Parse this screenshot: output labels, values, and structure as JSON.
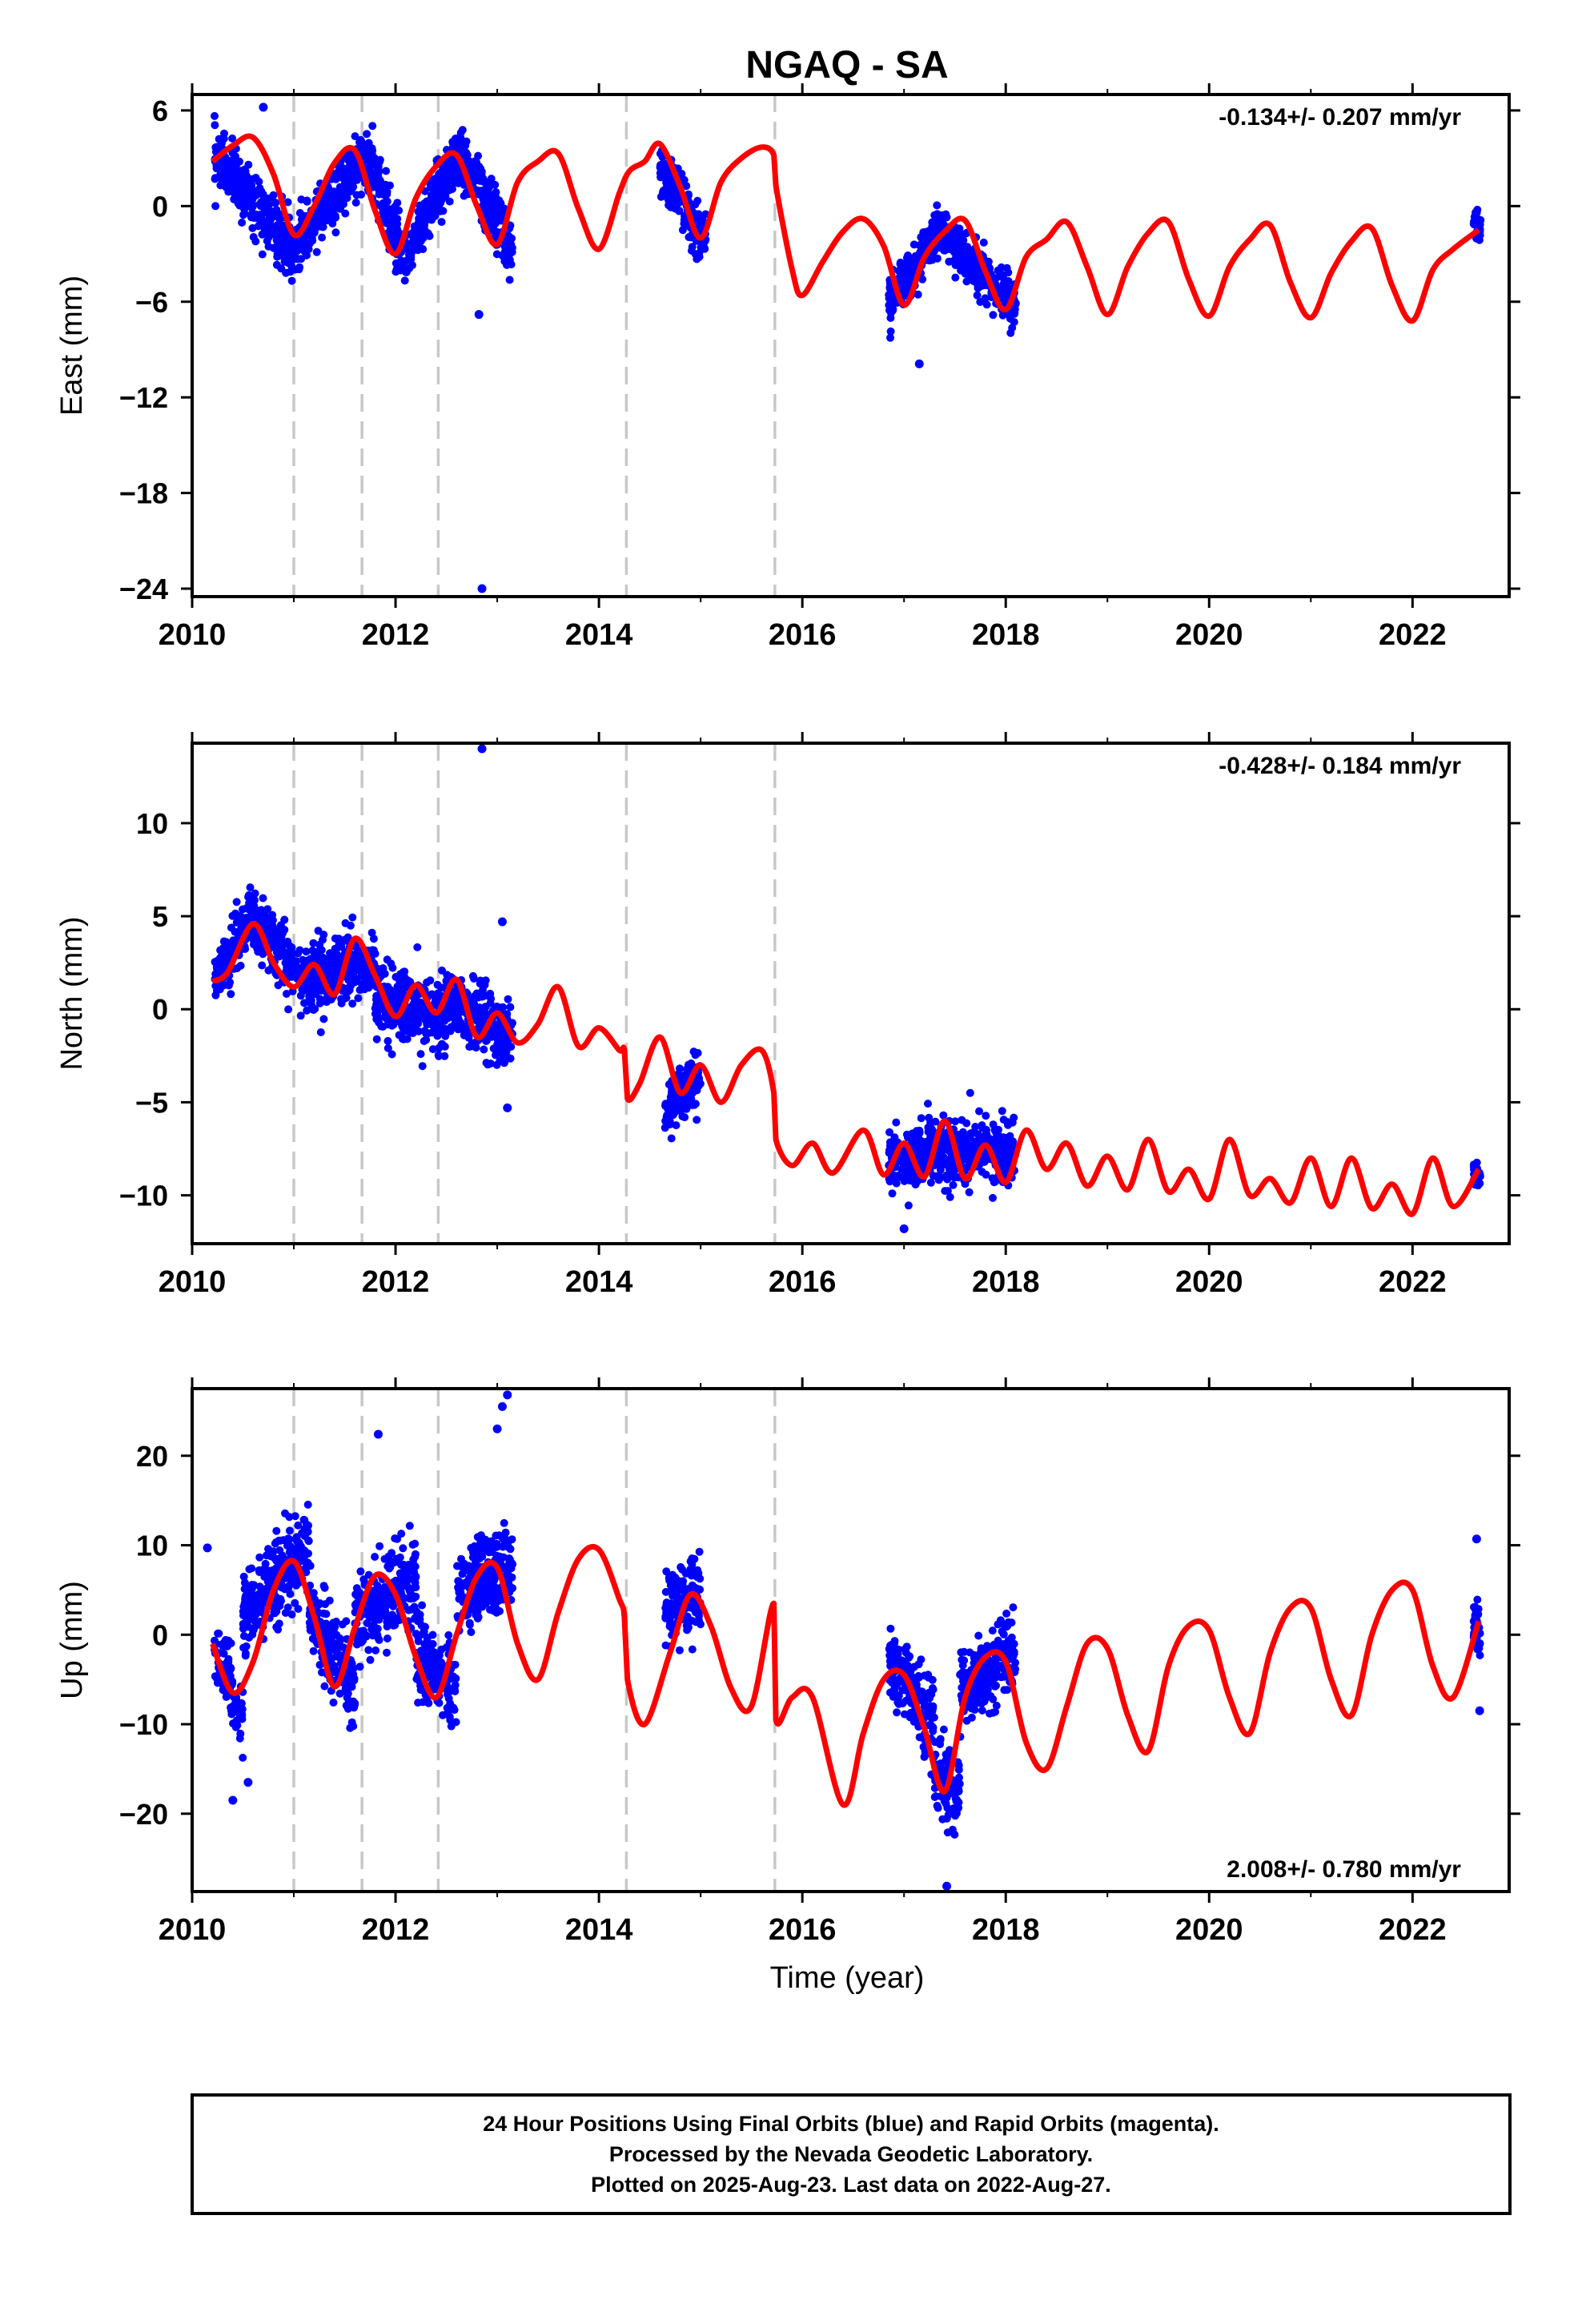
{
  "title": "NGAQ - SA",
  "xlabel": "Time (year)",
  "caption": {
    "line1": "24 Hour Positions Using Final Orbits (blue) and Rapid Orbits (magenta).",
    "line2": "Processed by the Nevada Geodetic Laboratory.",
    "line3": "Plotted on 2025-Aug-23. Last data on 2022-Aug-27."
  },
  "colors": {
    "data_points": "#0000ff",
    "model_fit": "#ff0000",
    "event_lines": "#c8c8c8",
    "frame": "#000000"
  },
  "equipment_change_years": [
    2011.0,
    2011.67,
    2012.42,
    2014.27,
    2015.73
  ],
  "chart_data": [
    {
      "type": "scatter",
      "ylabel": "East (mm)",
      "rate_label": "-0.134+/- 0.207 mm/yr",
      "xlim": [
        2010.0,
        2022.95
      ],
      "ylim": [
        -24.5,
        7.0
      ],
      "xticks": [
        2010,
        2012,
        2014,
        2016,
        2018,
        2020,
        2022
      ],
      "yticks": [
        6,
        0,
        -6,
        -12,
        -18,
        -24
      ],
      "fit": {
        "name": "model",
        "x": [
          2010.2,
          2010.4,
          2010.6,
          2010.8,
          2011.0,
          2011.2,
          2011.4,
          2011.6,
          2011.8,
          2012.0,
          2012.2,
          2012.4,
          2012.6,
          2012.8,
          2013.0,
          2013.2,
          2013.4,
          2013.6,
          2013.8,
          2014.0,
          2014.2,
          2014.3,
          2014.45,
          2014.6,
          2014.8,
          2015.0,
          2015.2,
          2015.4,
          2015.6,
          2015.72,
          2015.74,
          2015.9,
          2016.0,
          2016.2,
          2016.4,
          2016.6,
          2016.8,
          2017.0,
          2017.2,
          2017.4,
          2017.6,
          2017.8,
          2018.0,
          2018.2,
          2018.4,
          2018.6,
          2018.8,
          2019.0,
          2019.2,
          2019.4,
          2019.6,
          2019.8,
          2020.0,
          2020.2,
          2020.4,
          2020.6,
          2020.8,
          2021.0,
          2021.2,
          2021.4,
          2021.6,
          2021.8,
          2022.0,
          2022.2,
          2022.4,
          2022.65
        ],
        "y": [
          2.8,
          3.8,
          4.3,
          2.0,
          -1.8,
          0.0,
          2.7,
          3.5,
          -0.3,
          -3.0,
          0.5,
          2.5,
          3.2,
          0.0,
          -2.4,
          1.5,
          2.8,
          3.3,
          -0.2,
          -2.7,
          0.8,
          2.2,
          2.8,
          3.9,
          1.2,
          -2.0,
          1.5,
          3.0,
          3.7,
          3.2,
          1.3,
          -4.0,
          -5.6,
          -3.5,
          -1.6,
          -0.8,
          -2.5,
          -6.2,
          -3.2,
          -1.6,
          -0.9,
          -4.1,
          -6.5,
          -3.2,
          -2.1,
          -1.0,
          -3.8,
          -6.8,
          -3.8,
          -1.7,
          -1.0,
          -4.6,
          -6.9,
          -3.8,
          -2.1,
          -1.2,
          -4.8,
          -7.0,
          -4.2,
          -2.2,
          -1.4,
          -5.0,
          -7.2,
          -4.0,
          -2.7,
          -1.5
        ]
      },
      "points": {
        "name": "positions",
        "segments": [
          {
            "x": [
              2010.22,
              2011.0
            ],
            "center": [
              3.2,
              -2.8
            ],
            "spread": 1.5
          },
          {
            "x": [
              2011.0,
              2011.7
            ],
            "center": [
              -2.8,
              3.2
            ],
            "spread": 1.4
          },
          {
            "x": [
              2011.7,
              2012.1
            ],
            "center": [
              3.2,
              -3.4
            ],
            "spread": 1.6
          },
          {
            "x": [
              2012.1,
              2012.6
            ],
            "center": [
              -3.4,
              3.4
            ],
            "spread": 1.4
          },
          {
            "x": [
              2012.6,
              2013.15
            ],
            "center": [
              3.4,
              -2.8
            ],
            "spread": 1.6
          },
          {
            "x": [
              2014.6,
              2015.05
            ],
            "center": [
              2.5,
              -2.2
            ],
            "spread": 1.3
          },
          {
            "x": [
              2016.85,
              2017.3
            ],
            "center": [
              -6.0,
              -2.0
            ],
            "spread": 1.2
          },
          {
            "x": [
              2017.3,
              2018.1
            ],
            "center": [
              -1.2,
              -6.5
            ],
            "spread": 1.3
          },
          {
            "x": [
              2022.6,
              2022.67
            ],
            "center": [
              -1.0,
              -1.5
            ],
            "spread": 0.8
          }
        ],
        "outliers": [
          {
            "x": 2012.85,
            "y": -24.0
          },
          {
            "x": 2012.82,
            "y": -6.8
          },
          {
            "x": 2017.15,
            "y": -9.9
          },
          {
            "x": 2010.7,
            "y": 6.2
          }
        ]
      }
    },
    {
      "type": "scatter",
      "ylabel": "North (mm)",
      "rate_label": "-0.428+/- 0.184 mm/yr",
      "xlim": [
        2010.0,
        2022.95
      ],
      "ylim": [
        -12.6,
        14.3
      ],
      "xticks": [
        2010,
        2012,
        2014,
        2016,
        2018,
        2020,
        2022
      ],
      "yticks": [
        10,
        5,
        0,
        -5,
        -10
      ],
      "fit": {
        "name": "model",
        "x": [
          2010.2,
          2010.35,
          2010.6,
          2010.8,
          2011.0,
          2011.2,
          2011.4,
          2011.6,
          2011.8,
          2012.0,
          2012.2,
          2012.4,
          2012.6,
          2012.8,
          2013.0,
          2013.2,
          2013.4,
          2013.6,
          2013.8,
          2014.0,
          2014.2,
          2014.25,
          2014.28,
          2014.4,
          2014.6,
          2014.8,
          2015.0,
          2015.2,
          2015.4,
          2015.6,
          2015.72,
          2015.74,
          2015.9,
          2016.1,
          2016.3,
          2016.6,
          2016.8,
          2017.0,
          2017.2,
          2017.4,
          2017.6,
          2017.8,
          2018.0,
          2018.2,
          2018.4,
          2018.6,
          2018.8,
          2019.0,
          2019.2,
          2019.4,
          2019.6,
          2019.8,
          2020.0,
          2020.2,
          2020.4,
          2020.6,
          2020.8,
          2021.0,
          2021.2,
          2021.4,
          2021.6,
          2021.8,
          2022.0,
          2022.2,
          2022.4,
          2022.65
        ],
        "y": [
          1.5,
          2.0,
          4.6,
          2.5,
          1.2,
          2.4,
          0.8,
          3.8,
          1.8,
          -0.4,
          1.3,
          -0.2,
          1.6,
          -1.5,
          -0.2,
          -1.8,
          -0.8,
          1.2,
          -2.0,
          -1.0,
          -2.2,
          -2.2,
          -4.8,
          -4.0,
          -1.5,
          -4.5,
          -3.0,
          -5.0,
          -3.0,
          -2.2,
          -4.5,
          -7.0,
          -8.4,
          -7.2,
          -8.8,
          -6.5,
          -8.9,
          -7.2,
          -9.0,
          -6.0,
          -9.1,
          -7.3,
          -9.3,
          -6.5,
          -8.6,
          -7.2,
          -9.5,
          -7.9,
          -9.7,
          -7.0,
          -9.8,
          -8.6,
          -10.2,
          -7.0,
          -10.0,
          -9.1,
          -10.4,
          -8.0,
          -10.6,
          -8.0,
          -10.7,
          -9.4,
          -11.0,
          -8.0,
          -10.6,
          -8.6
        ]
      },
      "points": {
        "name": "positions",
        "segments": [
          {
            "x": [
              2010.22,
              2010.6
            ],
            "center": [
              1.5,
              5.0
            ],
            "spread": 1.2
          },
          {
            "x": [
              2010.6,
              2011.1
            ],
            "center": [
              5.0,
              1.5
            ],
            "spread": 1.3
          },
          {
            "x": [
              2011.1,
              2011.8
            ],
            "center": [
              1.5,
              2.8
            ],
            "spread": 1.5
          },
          {
            "x": [
              2011.8,
              2012.5
            ],
            "center": [
              0.5,
              -0.5
            ],
            "spread": 1.6
          },
          {
            "x": [
              2012.5,
              2013.15
            ],
            "center": [
              0.5,
              -1.5
            ],
            "spread": 1.5
          },
          {
            "x": [
              2014.65,
              2015.0
            ],
            "center": [
              -5.5,
              -3.5
            ],
            "spread": 1.2
          },
          {
            "x": [
              2016.85,
              2018.1
            ],
            "center": [
              -8.0,
              -7.5
            ],
            "spread": 1.4
          },
          {
            "x": [
              2022.6,
              2022.67
            ],
            "center": [
              -8.5,
              -9.5
            ],
            "spread": 0.8
          }
        ],
        "outliers": [
          {
            "x": 2012.85,
            "y": 14.0
          },
          {
            "x": 2013.05,
            "y": 4.7
          },
          {
            "x": 2013.1,
            "y": -5.3
          },
          {
            "x": 2017.0,
            "y": -11.8
          }
        ]
      }
    },
    {
      "type": "scatter",
      "ylabel": "Up (mm)",
      "rate_label": "2.008+/- 0.780 mm/yr",
      "xlim": [
        2010.0,
        2022.95
      ],
      "ylim": [
        -28.7,
        27.5
      ],
      "xticks": [
        2010,
        2012,
        2014,
        2016,
        2018,
        2020,
        2022
      ],
      "yticks": [
        20,
        10,
        0,
        -10,
        -20
      ],
      "fit": {
        "name": "model",
        "x": [
          2010.2,
          2010.4,
          2010.6,
          2010.8,
          2011.0,
          2011.2,
          2011.4,
          2011.6,
          2011.8,
          2012.0,
          2012.2,
          2012.4,
          2012.6,
          2012.8,
          2013.0,
          2013.2,
          2013.4,
          2013.6,
          2013.8,
          2014.0,
          2014.2,
          2014.25,
          2014.28,
          2014.45,
          2014.7,
          2014.9,
          2015.1,
          2015.3,
          2015.5,
          2015.72,
          2015.74,
          2015.9,
          2016.1,
          2016.4,
          2016.6,
          2016.8,
          2017.0,
          2017.2,
          2017.4,
          2017.6,
          2017.8,
          2018.0,
          2018.2,
          2018.4,
          2018.6,
          2018.8,
          2019.0,
          2019.2,
          2019.4,
          2019.6,
          2019.8,
          2020.0,
          2020.2,
          2020.4,
          2020.6,
          2020.8,
          2021.0,
          2021.2,
          2021.4,
          2021.6,
          2021.8,
          2022.0,
          2022.2,
          2022.4,
          2022.65
        ],
        "y": [
          -1.0,
          -6.5,
          -3.0,
          5.0,
          8.2,
          2.0,
          -5.8,
          0.8,
          6.6,
          4.5,
          -2.5,
          -7.0,
          0.0,
          6.5,
          7.5,
          -1.0,
          -5.0,
          2.5,
          8.5,
          9.5,
          4.0,
          2.0,
          -5.0,
          -10.0,
          -2.0,
          4.5,
          1.0,
          -6.0,
          -8.0,
          3.5,
          -9.5,
          -7.0,
          -7.0,
          -19.0,
          -11.0,
          -5.0,
          -4.5,
          -10.5,
          -17.5,
          -7.0,
          -2.5,
          -3.0,
          -12.0,
          -15.0,
          -8.0,
          -1.0,
          -1.5,
          -9.0,
          -13.0,
          -3.5,
          1.0,
          0.5,
          -7.0,
          -11.0,
          -2.0,
          3.0,
          3.0,
          -5.0,
          -9.0,
          0.0,
          5.0,
          5.0,
          -3.5,
          -7.0,
          1.5
        ]
      },
      "points": {
        "name": "positions",
        "segments": [
          {
            "x": [
              2010.22,
              2010.5
            ],
            "center": [
              -2.0,
              -9.0
            ],
            "spread": 3.5
          },
          {
            "x": [
              2010.5,
              2011.15
            ],
            "center": [
              2.0,
              9.5
            ],
            "spread": 3.8
          },
          {
            "x": [
              2011.15,
              2011.6
            ],
            "center": [
              3.0,
              -6.0
            ],
            "spread": 3.5
          },
          {
            "x": [
              2011.6,
              2012.2
            ],
            "center": [
              2.0,
              6.0
            ],
            "spread": 4.0
          },
          {
            "x": [
              2012.2,
              2012.6
            ],
            "center": [
              -2.0,
              -6.0
            ],
            "spread": 3.5
          },
          {
            "x": [
              2012.6,
              2013.15
            ],
            "center": [
              4.0,
              8.0
            ],
            "spread": 4.0
          },
          {
            "x": [
              2014.65,
              2015.0
            ],
            "center": [
              3.0,
              5.0
            ],
            "spread": 3.5
          },
          {
            "x": [
              2016.85,
              2017.3
            ],
            "center": [
              -3.0,
              -10.0
            ],
            "spread": 3.5
          },
          {
            "x": [
              2017.3,
              2017.55
            ],
            "center": [
              -15.0,
              -19.0
            ],
            "spread": 3.5
          },
          {
            "x": [
              2017.55,
              2018.1
            ],
            "center": [
              -6.0,
              -2.0
            ],
            "spread": 3.5
          },
          {
            "x": [
              2022.6,
              2022.67
            ],
            "center": [
              2.0,
              -1.0
            ],
            "spread": 3.0
          }
        ],
        "outliers": [
          {
            "x": 2013.1,
            "y": 26.8
          },
          {
            "x": 2013.05,
            "y": 25.5
          },
          {
            "x": 2013.0,
            "y": 23.0
          },
          {
            "x": 2011.83,
            "y": 22.4
          },
          {
            "x": 2017.42,
            "y": -28.1
          },
          {
            "x": 2010.15,
            "y": 9.7
          },
          {
            "x": 2010.4,
            "y": -18.5
          },
          {
            "x": 2010.55,
            "y": -16.5
          },
          {
            "x": 2022.63,
            "y": 10.7
          },
          {
            "x": 2022.66,
            "y": -8.5
          }
        ]
      }
    }
  ]
}
